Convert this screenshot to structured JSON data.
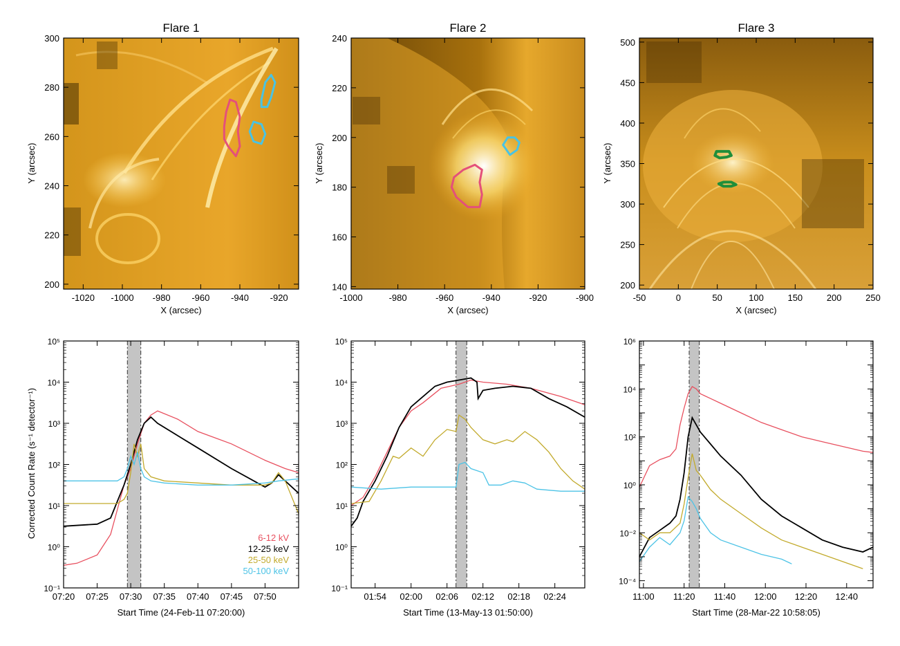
{
  "colors": {
    "red": "#e8505f",
    "black": "#000000",
    "olive": "#c2aa2c",
    "cyan": "#4cc3e6",
    "contour_red": "#e4507a",
    "contour_cyan": "#49c3e3",
    "contour_green": "#1f8e3a",
    "band": "#c4c4c4"
  },
  "titles": [
    "Flare 1",
    "Flare 2",
    "Flare 3"
  ],
  "image_xlabel": "X (arcsec)",
  "image_ylabel": "Y (arcsec)",
  "lc_ylabel": "Corrected Count Rate (s⁻¹ detector⁻¹)",
  "legend": [
    "6-12 kV",
    "12-25 keV",
    "25-50 keV",
    "50-100 keV"
  ],
  "chart_data": [
    {
      "type": "heatmap",
      "title": "Flare 1",
      "xlabel": "X (arcsec)",
      "ylabel": "Y (arcsec)",
      "xlim": [
        -1030,
        -910
      ],
      "ylim": [
        198,
        300
      ],
      "xticks": [
        -1020,
        -1000,
        -980,
        -960,
        -940,
        -920
      ],
      "yticks": [
        200,
        220,
        240,
        260,
        280,
        300
      ],
      "contours": [
        {
          "color": "red",
          "points": [
            [
              -946,
              256
            ],
            [
              -942,
              252
            ],
            [
              -940,
              256
            ],
            [
              -941,
              262
            ],
            [
              -940,
              268
            ],
            [
              -942,
              274
            ],
            [
              -945,
              275
            ],
            [
              -947,
              270
            ],
            [
              -948,
              264
            ],
            [
              -948,
              259
            ]
          ]
        },
        {
          "color": "cyan",
          "points": [
            [
              -929,
              275
            ],
            [
              -927,
              282
            ],
            [
              -924,
              285
            ],
            [
              -922,
              282
            ],
            [
              -924,
              276
            ],
            [
              -926,
              272
            ],
            [
              -929,
              272
            ]
          ]
        },
        {
          "color": "cyan",
          "points": [
            [
              -933,
              258
            ],
            [
              -929,
              257
            ],
            [
              -927,
              261
            ],
            [
              -929,
              265
            ],
            [
              -933,
              266
            ],
            [
              -935,
              262
            ]
          ]
        }
      ]
    },
    {
      "type": "heatmap",
      "title": "Flare 2",
      "xlabel": "X (arcsec)",
      "ylabel": "Y (arcsec)",
      "xlim": [
        -1000,
        -900
      ],
      "ylim": [
        139,
        240
      ],
      "xticks": [
        -1000,
        -980,
        -960,
        -940,
        -920,
        -900
      ],
      "yticks": [
        140,
        160,
        180,
        200,
        220,
        240
      ],
      "contours": [
        {
          "color": "red",
          "points": [
            [
              -950,
              172
            ],
            [
              -945,
              172
            ],
            [
              -944,
              177
            ],
            [
              -945,
              182
            ],
            [
              -944,
              187
            ],
            [
              -947,
              189
            ],
            [
              -952,
              187
            ],
            [
              -956,
              184
            ],
            [
              -957,
              180
            ],
            [
              -955,
              176
            ]
          ]
        },
        {
          "color": "cyan",
          "points": [
            [
              -932,
              193
            ],
            [
              -929,
              195
            ],
            [
              -928,
              198
            ],
            [
              -930,
              200
            ],
            [
              -933,
              200
            ],
            [
              -935,
              197
            ]
          ]
        }
      ]
    },
    {
      "type": "heatmap",
      "title": "Flare 3",
      "xlabel": "X (arcsec)",
      "ylabel": "Y (arcsec)",
      "xlim": [
        -50,
        250
      ],
      "ylim": [
        195,
        505
      ],
      "xticks": [
        -50,
        0,
        50,
        100,
        150,
        200,
        250
      ],
      "yticks": [
        200,
        250,
        300,
        350,
        400,
        450,
        500
      ],
      "contours": [
        {
          "color": "green",
          "points": [
            [
              47,
              360
            ],
            [
              53,
              357
            ],
            [
              62,
              358
            ],
            [
              68,
              360
            ],
            [
              65,
              365
            ],
            [
              56,
              365
            ],
            [
              49,
              365
            ]
          ]
        },
        {
          "color": "green",
          "points": [
            [
              52,
              325
            ],
            [
              58,
              322
            ],
            [
              68,
              322
            ],
            [
              74,
              324
            ],
            [
              68,
              327
            ],
            [
              58,
              327
            ]
          ]
        }
      ]
    },
    {
      "type": "line",
      "xlabel": "Start Time (24-Feb-11 07:20:00)",
      "ylabel": "Corrected Count Rate (s⁻¹ detector⁻¹)",
      "xlim": [
        0,
        35
      ],
      "yscale": "log",
      "ylim": [
        -1,
        5
      ],
      "xticks": [
        0,
        5,
        10,
        15,
        20,
        25,
        30
      ],
      "xticklabels": [
        "07:20",
        "07:25",
        "07:30",
        "07:35",
        "07:40",
        "07:45",
        "07:50"
      ],
      "yticks": [
        -1,
        0,
        1,
        2,
        3,
        4,
        5
      ],
      "band": [
        9.5,
        11.5
      ],
      "series": [
        {
          "name": "6-12 kV",
          "color": "red",
          "x": [
            0,
            2,
            5,
            7,
            8,
            9,
            10,
            11,
            12,
            13,
            14,
            17,
            20,
            25,
            30,
            33,
            35
          ],
          "y": [
            -0.45,
            -0.4,
            -0.2,
            0.3,
            0.9,
            1.5,
            1.9,
            2.5,
            3.0,
            3.2,
            3.3,
            3.1,
            2.8,
            2.5,
            2.1,
            1.9,
            1.8
          ]
        },
        {
          "name": "12-25 keV",
          "color": "black",
          "x": [
            0,
            5,
            7,
            8,
            9,
            10,
            11,
            12,
            13,
            14,
            17,
            20,
            25,
            30,
            31,
            32,
            33,
            35
          ],
          "y": [
            0.5,
            0.55,
            0.7,
            1.1,
            1.5,
            2.0,
            2.6,
            3.0,
            3.15,
            3.0,
            2.7,
            2.4,
            1.9,
            1.45,
            1.55,
            1.75,
            1.6,
            1.3
          ]
        },
        {
          "name": "25-50 keV",
          "color": "olive",
          "x": [
            0,
            8,
            9,
            9.5,
            10,
            10.5,
            11,
            11.5,
            12,
            13,
            15,
            20,
            25,
            30,
            31,
            32,
            33,
            35
          ],
          "y": [
            1.05,
            1.05,
            1.15,
            1.3,
            1.8,
            2.5,
            2.2,
            2.5,
            1.9,
            1.7,
            1.6,
            1.55,
            1.5,
            1.5,
            1.55,
            1.8,
            1.6,
            0.8
          ]
        },
        {
          "name": "50-100 keV",
          "color": "cyan",
          "x": [
            0,
            5,
            8,
            9,
            9.5,
            10,
            10.5,
            11,
            11.5,
            12,
            13,
            15,
            20,
            25,
            30,
            32,
            35
          ],
          "y": [
            1.6,
            1.6,
            1.6,
            1.7,
            1.9,
            2.2,
            2.0,
            2.3,
            1.9,
            1.7,
            1.6,
            1.55,
            1.5,
            1.5,
            1.55,
            1.6,
            1.65
          ]
        }
      ]
    },
    {
      "type": "line",
      "xlabel": "Start Time (13-May-13 01:50:00)",
      "xlim": [
        0,
        39
      ],
      "yscale": "log",
      "ylim": [
        -1,
        5
      ],
      "xticks": [
        4,
        10,
        16,
        22,
        28,
        34
      ],
      "xticklabels": [
        "01:54",
        "02:00",
        "02:06",
        "02:12",
        "02:18",
        "02:24"
      ],
      "yticks": [
        -1,
        0,
        1,
        2,
        3,
        4,
        5
      ],
      "band": [
        17.5,
        19.3
      ],
      "series": [
        {
          "name": "6-12 kV",
          "color": "red",
          "x": [
            0,
            2,
            4,
            6,
            8,
            10,
            12,
            15,
            18,
            20,
            22,
            26,
            30,
            35,
            39
          ],
          "y": [
            1.0,
            1.2,
            1.7,
            2.3,
            2.9,
            3.3,
            3.5,
            3.85,
            3.95,
            4.05,
            4.0,
            3.95,
            3.85,
            3.65,
            3.45
          ]
        },
        {
          "name": "12-25 keV",
          "color": "black",
          "x": [
            0,
            1,
            2,
            4,
            6,
            8,
            10,
            12,
            14,
            16,
            18,
            20,
            21,
            21.2,
            22,
            24,
            27,
            30,
            33,
            36,
            39
          ],
          "y": [
            0.5,
            0.7,
            1.1,
            1.6,
            2.2,
            2.9,
            3.4,
            3.65,
            3.9,
            4.0,
            4.05,
            4.1,
            4.0,
            3.6,
            3.8,
            3.85,
            3.9,
            3.85,
            3.6,
            3.4,
            3.15
          ]
        },
        {
          "name": "25-50 keV",
          "color": "olive",
          "x": [
            0,
            3,
            5,
            7,
            8,
            10,
            12,
            14,
            16,
            17.5,
            18,
            19,
            20,
            22,
            24,
            26,
            27,
            29,
            31,
            33,
            35,
            37,
            39
          ],
          "y": [
            1.05,
            1.1,
            1.6,
            2.2,
            2.15,
            2.4,
            2.2,
            2.6,
            2.85,
            2.8,
            3.2,
            3.1,
            2.9,
            2.6,
            2.5,
            2.6,
            2.55,
            2.8,
            2.6,
            2.3,
            1.9,
            1.6,
            1.4
          ]
        },
        {
          "name": "50-100 keV",
          "color": "cyan",
          "x": [
            0,
            5,
            10,
            15,
            17.5,
            18,
            19,
            20,
            22,
            23,
            25,
            27,
            29,
            31,
            35,
            39
          ],
          "y": [
            1.45,
            1.4,
            1.45,
            1.45,
            1.45,
            2.0,
            2.05,
            1.9,
            1.8,
            1.5,
            1.5,
            1.6,
            1.55,
            1.4,
            1.35,
            1.35
          ]
        }
      ]
    },
    {
      "type": "line",
      "xlabel": "Start Time (28-Mar-22 10:58:05)",
      "xlim": [
        0,
        115
      ],
      "yscale": "log",
      "ylim": [
        -4.3,
        6
      ],
      "xticks": [
        2,
        22,
        42,
        62,
        82,
        102
      ],
      "xticklabels": [
        "11:00",
        "11:20",
        "11:40",
        "12:00",
        "12:20",
        "12:40"
      ],
      "yticks": [
        -4,
        -2,
        0,
        2,
        4,
        6
      ],
      "band": [
        24.5,
        29.5
      ],
      "series": [
        {
          "name": "6-12 kV",
          "color": "red",
          "x": [
            0,
            5,
            10,
            15,
            18,
            20,
            22,
            24,
            26,
            28,
            30,
            35,
            40,
            50,
            60,
            70,
            80,
            90,
            100,
            110,
            115
          ],
          "y": [
            -0.1,
            0.8,
            1.05,
            1.2,
            1.5,
            2.5,
            3.2,
            3.8,
            4.1,
            4.0,
            3.8,
            3.6,
            3.4,
            3.0,
            2.6,
            2.3,
            2.0,
            1.8,
            1.6,
            1.4,
            1.35
          ]
        },
        {
          "name": "12-25 keV",
          "color": "black",
          "x": [
            0,
            5,
            10,
            15,
            18,
            20,
            22,
            24,
            26,
            28,
            30,
            35,
            40,
            50,
            60,
            70,
            80,
            90,
            100,
            110,
            115
          ],
          "y": [
            -3.0,
            -2.2,
            -1.9,
            -1.6,
            -1.3,
            -0.6,
            0.5,
            2.0,
            2.8,
            2.5,
            2.2,
            1.7,
            1.2,
            0.4,
            -0.6,
            -1.3,
            -1.8,
            -2.3,
            -2.6,
            -2.8,
            -2.6
          ]
        },
        {
          "name": "25-50 keV",
          "color": "olive",
          "x": [
            0,
            5,
            10,
            15,
            20,
            22,
            24,
            26,
            28,
            30,
            35,
            40,
            50,
            60,
            70,
            80,
            90,
            100,
            110
          ],
          "y": [
            -2.0,
            -2.3,
            -2.0,
            -2.0,
            -1.6,
            -0.8,
            0.3,
            1.3,
            0.6,
            0.4,
            -0.2,
            -0.6,
            -1.2,
            -1.8,
            -2.3,
            -2.6,
            -2.9,
            -3.2,
            -3.5
          ]
        },
        {
          "name": "50-100 keV",
          "color": "cyan",
          "x": [
            0,
            5,
            10,
            15,
            20,
            22,
            24,
            26,
            28,
            30,
            35,
            40,
            50,
            60,
            70,
            75
          ],
          "y": [
            -3.2,
            -2.6,
            -2.2,
            -2.5,
            -2.0,
            -1.5,
            -0.5,
            -0.7,
            -1.0,
            -1.4,
            -2.0,
            -2.3,
            -2.6,
            -2.9,
            -3.1,
            -3.3
          ]
        }
      ]
    }
  ]
}
